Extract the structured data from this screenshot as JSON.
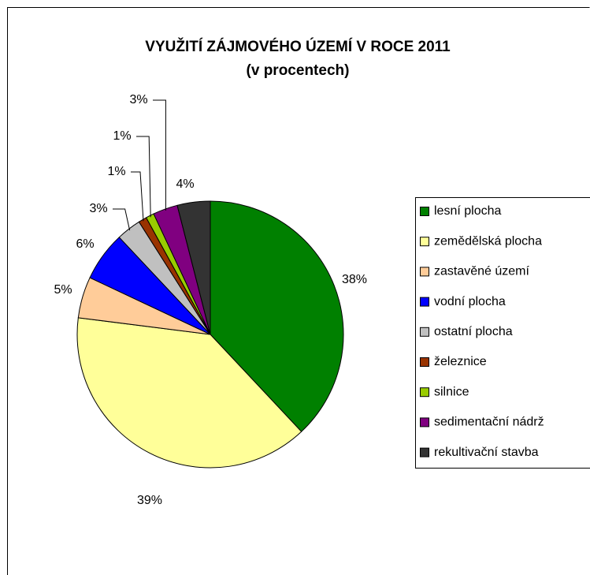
{
  "chart_data": {
    "type": "pie",
    "title": "VYUŽITÍ ZÁJMOVÉHO ÚZEMÍ V ROCE 2011",
    "subtitle": "(v procentech)",
    "categories": [
      "lesní plocha",
      "zemědělská plocha",
      "zastavěné území",
      "vodní plocha",
      "ostatní plocha",
      "železnice",
      "silnice",
      "sedimentační nádrž",
      "rekultivační stavba"
    ],
    "values": [
      38,
      39,
      5,
      6,
      3,
      1,
      1,
      3,
      4
    ],
    "value_labels": [
      "38%",
      "39%",
      "5%",
      "6%",
      "3%",
      "1%",
      "1%",
      "3%",
      "4%"
    ],
    "colors": [
      "#008000",
      "#ffff99",
      "#ffcc99",
      "#0000ff",
      "#c0c0c0",
      "#993300",
      "#99cc00",
      "#800080",
      "#333333"
    ],
    "legend": "right"
  }
}
